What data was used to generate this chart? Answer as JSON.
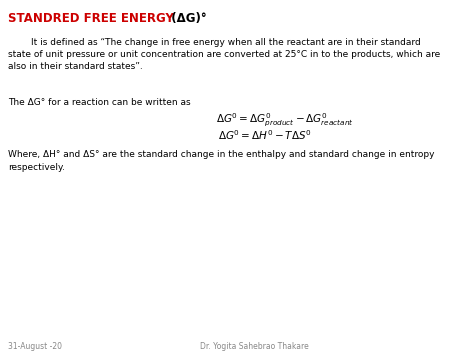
{
  "bg_color": "#ffffff",
  "title_red": "STANDRED FREE ENERGY",
  "title_delta_g": "  (ΔG)°",
  "title_color": "#cc0000",
  "title_fontsize": 8.5,
  "body_fontsize": 6.5,
  "math_fontsize": 7.5,
  "footer_fontsize": 5.5,
  "para1_indent": "        It is defined as “The change in free energy when all the reactant are in their standard\nstate of unit pressure or unit concentration are converted at 25°C in to the products, which are\nalso in their standard states”.",
  "para2_prefix": "The ΔG° for a reaction can be written as",
  "eq1": "$\\Delta G^0= \\Delta G^0_{product} - \\Delta G^0_{reactant}$",
  "eq2": "$\\Delta G^0= \\Delta H^0 - T\\Delta S^0$",
  "para3_line1": "Where, ΔH° and ΔS° are the standard change in the enthalpy and standard change in entropy",
  "para3_line2": "respectively.",
  "footer_left": "31-August -20",
  "footer_right": "Dr. Yogita Sahebrao Thakare"
}
